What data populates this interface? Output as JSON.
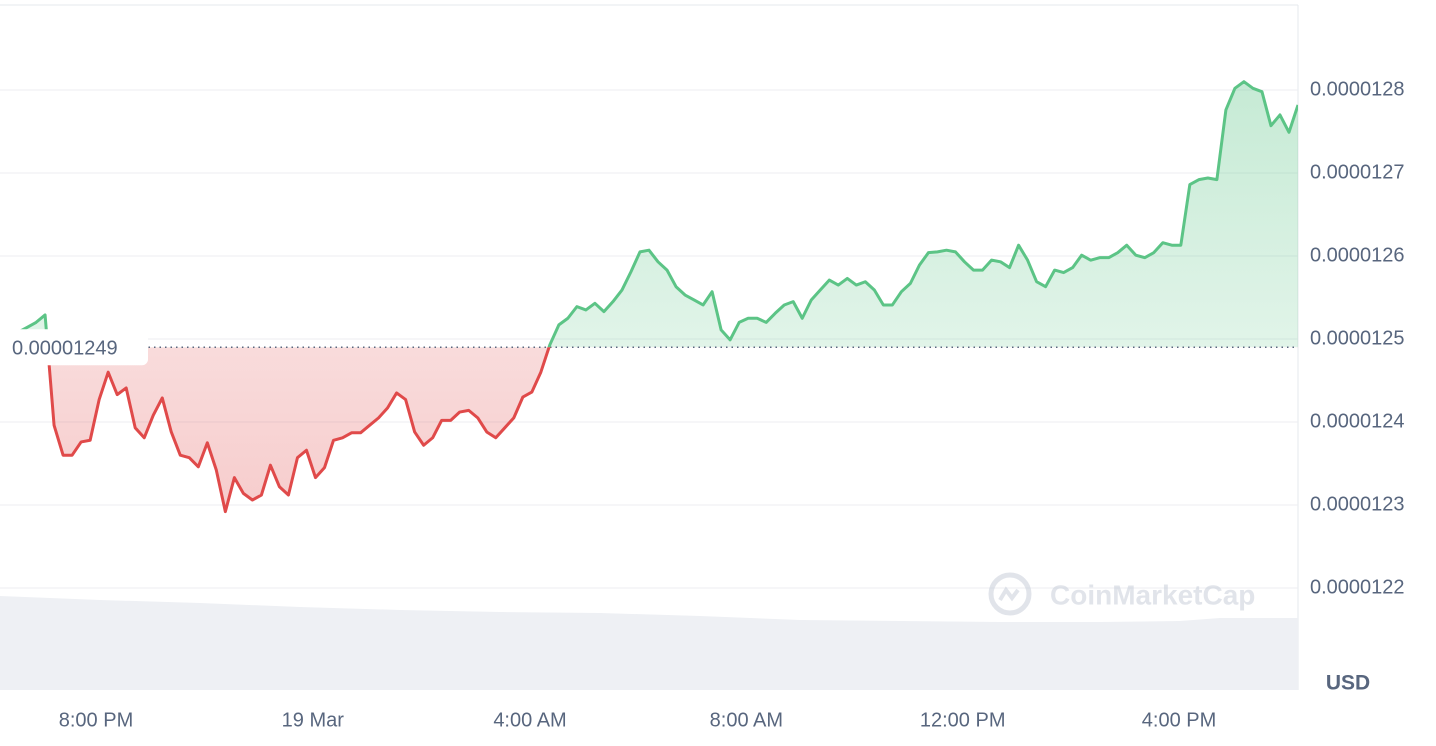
{
  "chart_data": {
    "type": "line",
    "currency": "USD",
    "watermark": "CoinMarketCap",
    "up_color": "#5cc486",
    "down_color": "#e04a4a",
    "baseline": 1.249e-05,
    "xlim": [
      0,
      144
    ],
    "xticks": [
      {
        "value": 10.65,
        "label": "8:00 PM"
      },
      {
        "value": 34.7,
        "label": "19 Mar"
      },
      {
        "value": 58.8,
        "label": "4:00 AM"
      },
      {
        "value": 82.8,
        "label": "8:00 AM"
      },
      {
        "value": 106.8,
        "label": "12:00 PM"
      },
      {
        "value": 130.8,
        "label": "4:00 PM"
      }
    ],
    "ylim": [
      1.215e-05,
      1.29e-05
    ],
    "yticks": [
      1.22e-05,
      1.23e-05,
      1.24e-05,
      1.25e-05,
      1.26e-05,
      1.27e-05,
      1.28e-05
    ],
    "grid": true,
    "values": [
      1.2493e-05,
      1.2505e-05,
      1.2508e-05,
      1.2514e-05,
      1.252e-05,
      1.2529e-05,
      1.2396e-05,
      1.236e-05,
      1.236e-05,
      1.2376e-05,
      1.2378e-05,
      1.2427e-05,
      1.246e-05,
      1.2433e-05,
      1.2441e-05,
      1.2393e-05,
      1.2381e-05,
      1.2408e-05,
      1.2429e-05,
      1.2388e-05,
      1.236e-05,
      1.2357e-05,
      1.2346e-05,
      1.2375e-05,
      1.2342e-05,
      1.2292e-05,
      1.2333e-05,
      1.2314e-05,
      1.2306e-05,
      1.2312e-05,
      1.2348e-05,
      1.2322e-05,
      1.2312e-05,
      1.2357e-05,
      1.2366e-05,
      1.2333e-05,
      1.2345e-05,
      1.2378e-05,
      1.2381e-05,
      1.2387e-05,
      1.2387e-05,
      1.2396e-05,
      1.2405e-05,
      1.2417e-05,
      1.2435e-05,
      1.2427e-05,
      1.2388e-05,
      1.2372e-05,
      1.2381e-05,
      1.2402e-05,
      1.2402e-05,
      1.2412e-05,
      1.2414e-05,
      1.2405e-05,
      1.2388e-05,
      1.2381e-05,
      1.2393e-05,
      1.2405e-05,
      1.243e-05,
      1.2436e-05,
      1.246e-05,
      1.2493e-05,
      1.2517e-05,
      1.2525e-05,
      1.2539e-05,
      1.2535e-05,
      1.2543e-05,
      1.2533e-05,
      1.2545e-05,
      1.2559e-05,
      1.2581e-05,
      1.2605e-05,
      1.2607e-05,
      1.2593e-05,
      1.2583e-05,
      1.2563e-05,
      1.2553e-05,
      1.2547e-05,
      1.2541e-05,
      1.2557e-05,
      1.2511e-05,
      1.2499e-05,
      1.252e-05,
      1.2525e-05,
      1.2525e-05,
      1.252e-05,
      1.2531e-05,
      1.2541e-05,
      1.2545e-05,
      1.2525e-05,
      1.2547e-05,
      1.2559e-05,
      1.2571e-05,
      1.2565e-05,
      1.2573e-05,
      1.2565e-05,
      1.2569e-05,
      1.2559e-05,
      1.2541e-05,
      1.2541e-05,
      1.2557e-05,
      1.2567e-05,
      1.2589e-05,
      1.2604e-05,
      1.2605e-05,
      1.2607e-05,
      1.2605e-05,
      1.2593e-05,
      1.2583e-05,
      1.2583e-05,
      1.2595e-05,
      1.2593e-05,
      1.2586e-05,
      1.2613e-05,
      1.2595e-05,
      1.2569e-05,
      1.2563e-05,
      1.2583e-05,
      1.258e-05,
      1.2586e-05,
      1.2601e-05,
      1.2595e-05,
      1.2598e-05,
      1.2598e-05,
      1.2604e-05,
      1.2613e-05,
      1.2601e-05,
      1.2598e-05,
      1.2604e-05,
      1.2616e-05,
      1.2613e-05,
      1.2613e-05,
      1.2686e-05,
      1.2692e-05,
      1.2694e-05,
      1.2692e-05,
      1.2776e-05,
      1.2802e-05,
      1.281e-05,
      1.2802e-05,
      1.2798e-05,
      1.2757e-05,
      1.277e-05,
      1.2749e-05,
      1.2782e-05
    ]
  }
}
